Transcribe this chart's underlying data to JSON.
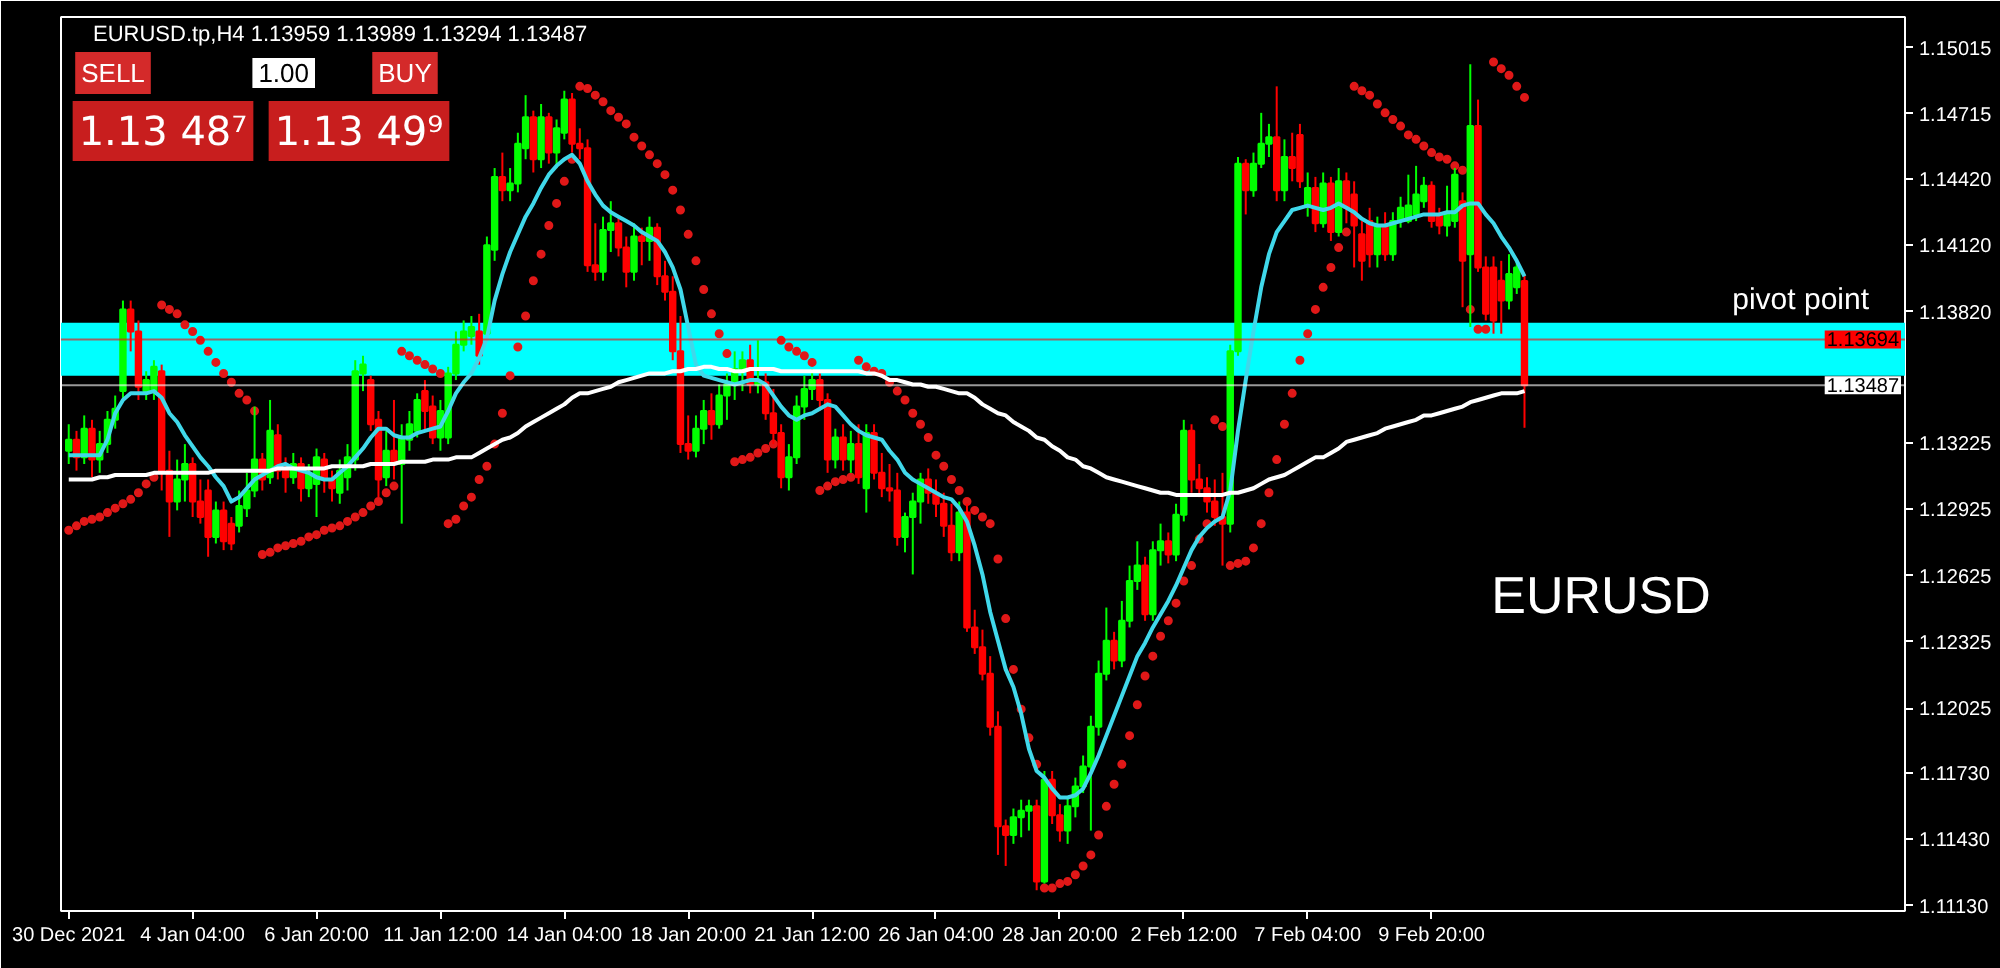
{
  "chart_data": {
    "type": "candlestick",
    "title": "EURUSD.tp,H4 1.13959 1.13989 1.13294 1.13487",
    "categories": [
      "30 Dec 2021",
      null,
      null,
      null,
      null,
      null,
      null,
      null,
      null,
      null,
      null,
      null,
      null,
      null,
      null,
      null,
      "4 Jan 04:00",
      null,
      null,
      null,
      null,
      null,
      null,
      null,
      null,
      null,
      null,
      null,
      null,
      null,
      null,
      null,
      "6 Jan 20:00",
      null,
      null,
      null,
      null,
      null,
      null,
      null,
      null,
      null,
      null,
      null,
      null,
      null,
      null,
      null,
      "11 Jan 12:00",
      null,
      null,
      null,
      null,
      null,
      null,
      null,
      null,
      null,
      null,
      null,
      null,
      null,
      null,
      null,
      "14 Jan 04:00",
      null,
      null,
      null,
      null,
      null,
      null,
      null,
      null,
      null,
      null,
      null,
      null,
      null,
      null,
      null,
      "18 Jan 20:00",
      null,
      null,
      null,
      null,
      null,
      null,
      null,
      null,
      null,
      null,
      null,
      null,
      null,
      null,
      null,
      "21 Jan 12:00",
      null,
      null,
      null,
      null,
      null,
      null,
      null,
      null,
      null,
      null,
      null,
      null,
      null,
      null,
      null,
      "26 Jan 04:00",
      null,
      null,
      null,
      null,
      null,
      null,
      null,
      null,
      null,
      null,
      null,
      null,
      null,
      null,
      null,
      "28 Jan 20:00",
      null,
      null,
      null,
      null,
      null,
      null,
      null,
      null,
      null,
      null,
      null,
      null,
      null,
      null,
      null,
      "2 Feb 12:00",
      null,
      null,
      null,
      null,
      null,
      null,
      null,
      null,
      null,
      null,
      null,
      null,
      null,
      null,
      null,
      "7 Feb 04:00",
      null,
      null,
      null,
      null,
      null,
      null,
      null,
      null,
      null,
      null,
      null,
      null,
      null,
      null,
      null,
      "9 Feb 20:00",
      null,
      null,
      null,
      null,
      null,
      null,
      null,
      null,
      null,
      null,
      null,
      null
    ],
    "ohlc": [
      [
        1.1319,
        1.1331,
        1.1313,
        1.1324
      ],
      [
        1.1324,
        1.1328,
        1.131,
        1.1316
      ],
      [
        1.1316,
        1.1335,
        1.1313,
        1.1329
      ],
      [
        1.1329,
        1.1333,
        1.1307,
        1.1315
      ],
      [
        1.1315,
        1.1328,
        1.1309,
        1.1322
      ],
      [
        1.1322,
        1.1337,
        1.1318,
        1.1333
      ],
      [
        1.1333,
        1.1344,
        1.1329,
        1.1338
      ],
      [
        1.1346,
        1.1387,
        1.1342,
        1.1383
      ],
      [
        1.1383,
        1.1387,
        1.1364,
        1.1373
      ],
      [
        1.1373,
        1.1378,
        1.1342,
        1.1348
      ],
      [
        1.1346,
        1.1355,
        1.1342,
        1.1351
      ],
      [
        1.1346,
        1.136,
        1.1342,
        1.1357
      ],
      [
        1.1355,
        1.1358,
        1.1301,
        1.131
      ],
      [
        1.131,
        1.1319,
        1.128,
        1.1296
      ],
      [
        1.1296,
        1.1315,
        1.1292,
        1.1306
      ],
      [
        1.1306,
        1.1322,
        1.1296,
        1.1313
      ],
      [
        1.1313,
        1.1316,
        1.1289,
        1.1296
      ],
      [
        1.1296,
        1.1306,
        1.1286,
        1.1289
      ],
      [
        1.1301,
        1.1306,
        1.1271,
        1.128
      ],
      [
        1.128,
        1.1296,
        1.1277,
        1.1292
      ],
      [
        1.1292,
        1.1296,
        1.1274,
        1.1278
      ],
      [
        1.1286,
        1.1289,
        1.1274,
        1.1277
      ],
      [
        1.1285,
        1.1301,
        1.1282,
        1.1294
      ],
      [
        1.1293,
        1.1309,
        1.1289,
        1.1301
      ],
      [
        1.1301,
        1.1339,
        1.1298,
        1.1315
      ],
      [
        1.1315,
        1.1318,
        1.1301,
        1.1306
      ],
      [
        1.1307,
        1.1342,
        1.1304,
        1.1328
      ],
      [
        1.1326,
        1.1331,
        1.1306,
        1.131
      ],
      [
        1.131,
        1.1316,
        1.13,
        1.1307
      ],
      [
        1.1307,
        1.1318,
        1.1304,
        1.1313
      ],
      [
        1.1313,
        1.1316,
        1.1296,
        1.1302
      ],
      [
        1.1302,
        1.1313,
        1.1298,
        1.1309
      ],
      [
        1.1304,
        1.132,
        1.1289,
        1.1316
      ],
      [
        1.1315,
        1.1318,
        1.13,
        1.1306
      ],
      [
        1.1306,
        1.131,
        1.1296,
        1.1302
      ],
      [
        1.13,
        1.1315,
        1.1295,
        1.131
      ],
      [
        1.1307,
        1.1322,
        1.1301,
        1.1316
      ],
      [
        1.1315,
        1.136,
        1.131,
        1.1355
      ],
      [
        1.1354,
        1.1362,
        1.1346,
        1.1358
      ],
      [
        1.1351,
        1.1353,
        1.1328,
        1.1331
      ],
      [
        1.1333,
        1.1337,
        1.1298,
        1.1306
      ],
      [
        1.1307,
        1.1328,
        1.1303,
        1.1319
      ],
      [
        1.1319,
        1.1342,
        1.1306,
        1.1313
      ],
      [
        1.1313,
        1.1331,
        1.1286,
        1.1325
      ],
      [
        1.1324,
        1.1337,
        1.1319,
        1.1331
      ],
      [
        1.1328,
        1.1345,
        1.1325,
        1.1342
      ],
      [
        1.1346,
        1.1351,
        1.1328,
        1.1337
      ],
      [
        1.1339,
        1.1344,
        1.1322,
        1.1325
      ],
      [
        1.1325,
        1.1342,
        1.1319,
        1.1337
      ],
      [
        1.1325,
        1.1357,
        1.1322,
        1.1354
      ],
      [
        1.1354,
        1.1373,
        1.1351,
        1.1367
      ],
      [
        1.1367,
        1.1378,
        1.1364,
        1.1373
      ],
      [
        1.1371,
        1.138,
        1.1367,
        1.1375
      ],
      [
        1.1373,
        1.1381,
        1.1358,
        1.1362
      ],
      [
        1.1372,
        1.1416,
        1.1369,
        1.1412
      ],
      [
        1.141,
        1.1447,
        1.1405,
        1.1443
      ],
      [
        1.1443,
        1.1454,
        1.1432,
        1.1437
      ],
      [
        1.1437,
        1.1447,
        1.1432,
        1.144
      ],
      [
        1.144,
        1.1463,
        1.1436,
        1.1458
      ],
      [
        1.1456,
        1.148,
        1.1451,
        1.147
      ],
      [
        1.147,
        1.1473,
        1.1445,
        1.1451
      ],
      [
        1.1451,
        1.1476,
        1.1447,
        1.147
      ],
      [
        1.147,
        1.1472,
        1.1449,
        1.1454
      ],
      [
        1.1454,
        1.1469,
        1.1447,
        1.1465
      ],
      [
        1.1463,
        1.1482,
        1.146,
        1.1478
      ],
      [
        1.1478,
        1.1481,
        1.1454,
        1.1458
      ],
      [
        1.1458,
        1.1465,
        1.1451,
        1.1456
      ],
      [
        1.1456,
        1.146,
        1.14,
        1.1403
      ],
      [
        1.1403,
        1.1422,
        1.1396,
        1.14
      ],
      [
        1.14,
        1.1425,
        1.1396,
        1.1419
      ],
      [
        1.1419,
        1.1432,
        1.1409,
        1.1422
      ],
      [
        1.1422,
        1.1425,
        1.1407,
        1.1411
      ],
      [
        1.1411,
        1.1416,
        1.1393,
        1.14
      ],
      [
        1.14,
        1.1422,
        1.1396,
        1.1416
      ],
      [
        1.1416,
        1.142,
        1.1403,
        1.1414
      ],
      [
        1.1414,
        1.1425,
        1.1405,
        1.142
      ],
      [
        1.142,
        1.1422,
        1.1394,
        1.1398
      ],
      [
        1.1398,
        1.1405,
        1.1387,
        1.1391
      ],
      [
        1.1391,
        1.1398,
        1.136,
        1.1364
      ],
      [
        1.1364,
        1.138,
        1.1318,
        1.1322
      ],
      [
        1.1322,
        1.1335,
        1.1315,
        1.1319
      ],
      [
        1.1319,
        1.1335,
        1.1316,
        1.1329
      ],
      [
        1.1329,
        1.1342,
        1.1322,
        1.1337
      ],
      [
        1.1337,
        1.1345,
        1.1324,
        1.1331
      ],
      [
        1.1331,
        1.1349,
        1.1329,
        1.1344
      ],
      [
        1.1344,
        1.1354,
        1.1333,
        1.1349
      ],
      [
        1.1349,
        1.1364,
        1.1342,
        1.1356
      ],
      [
        1.1356,
        1.1364,
        1.1346,
        1.136
      ],
      [
        1.136,
        1.1367,
        1.1345,
        1.1349
      ],
      [
        1.1349,
        1.1369,
        1.1345,
        1.135
      ],
      [
        1.135,
        1.1354,
        1.1333,
        1.1336
      ],
      [
        1.1336,
        1.1347,
        1.1322,
        1.1327
      ],
      [
        1.1327,
        1.1331,
        1.1302,
        1.1307
      ],
      [
        1.1307,
        1.1322,
        1.1301,
        1.1316
      ],
      [
        1.1316,
        1.1344,
        1.1313,
        1.1339
      ],
      [
        1.1339,
        1.1353,
        1.1333,
        1.1347
      ],
      [
        1.1347,
        1.1356,
        1.1342,
        1.1351
      ],
      [
        1.1351,
        1.1354,
        1.1337,
        1.1342
      ],
      [
        1.1342,
        1.1345,
        1.1309,
        1.1315
      ],
      [
        1.1315,
        1.1329,
        1.1311,
        1.1325
      ],
      [
        1.1325,
        1.1331,
        1.131,
        1.1315
      ],
      [
        1.1315,
        1.1328,
        1.1309,
        1.1322
      ],
      [
        1.1322,
        1.1331,
        1.1304,
        1.1307
      ],
      [
        1.1302,
        1.1331,
        1.1291,
        1.1327
      ],
      [
        1.1327,
        1.1331,
        1.1306,
        1.1309
      ],
      [
        1.1309,
        1.1318,
        1.1298,
        1.1302
      ],
      [
        1.1302,
        1.1313,
        1.1296,
        1.1301
      ],
      [
        1.1301,
        1.1309,
        1.1276,
        1.128
      ],
      [
        1.128,
        1.1291,
        1.1273,
        1.1289
      ],
      [
        1.1289,
        1.13,
        1.1263,
        1.1296
      ],
      [
        1.1296,
        1.1309,
        1.1286,
        1.1306
      ],
      [
        1.1306,
        1.1311,
        1.1295,
        1.13
      ],
      [
        1.13,
        1.1306,
        1.1289,
        1.1295
      ],
      [
        1.1295,
        1.13,
        1.128,
        1.1285
      ],
      [
        1.1285,
        1.1295,
        1.1269,
        1.1273
      ],
      [
        1.1273,
        1.1296,
        1.1269,
        1.1291
      ],
      [
        1.1291,
        1.1295,
        1.1237,
        1.1239
      ],
      [
        1.1239,
        1.1247,
        1.1227,
        1.123
      ],
      [
        1.123,
        1.1238,
        1.1215,
        1.1218
      ],
      [
        1.1218,
        1.1226,
        1.119,
        1.1194
      ],
      [
        1.1194,
        1.1201,
        1.1136,
        1.1149
      ],
      [
        1.1149,
        1.1152,
        1.1131,
        1.1145
      ],
      [
        1.1145,
        1.1157,
        1.1141,
        1.1153
      ],
      [
        1.1153,
        1.1161,
        1.1144,
        1.1156
      ],
      [
        1.1156,
        1.1161,
        1.1147,
        1.1158
      ],
      [
        1.1158,
        1.1161,
        1.112,
        1.1124
      ],
      [
        1.1124,
        1.1174,
        1.1123,
        1.117
      ],
      [
        1.117,
        1.1174,
        1.115,
        1.1154
      ],
      [
        1.1154,
        1.1159,
        1.1142,
        1.1147
      ],
      [
        1.1147,
        1.1162,
        1.1141,
        1.1158
      ],
      [
        1.1158,
        1.1171,
        1.1153,
        1.1167
      ],
      [
        1.1167,
        1.1181,
        1.1164,
        1.1176
      ],
      [
        1.1176,
        1.1199,
        1.1147,
        1.1194
      ],
      [
        1.1194,
        1.1224,
        1.119,
        1.1218
      ],
      [
        1.1218,
        1.1248,
        1.1215,
        1.1233
      ],
      [
        1.1233,
        1.1237,
        1.122,
        1.1224
      ],
      [
        1.1224,
        1.1251,
        1.1221,
        1.1242
      ],
      [
        1.1242,
        1.1267,
        1.1239,
        1.126
      ],
      [
        1.126,
        1.1278,
        1.1256,
        1.1267
      ],
      [
        1.1267,
        1.1271,
        1.1242,
        1.1245
      ],
      [
        1.1245,
        1.1278,
        1.1242,
        1.1274
      ],
      [
        1.1274,
        1.1286,
        1.1267,
        1.1278
      ],
      [
        1.1278,
        1.1282,
        1.1268,
        1.1272
      ],
      [
        1.1272,
        1.1295,
        1.1269,
        1.129
      ],
      [
        1.129,
        1.1333,
        1.1287,
        1.1328
      ],
      [
        1.1328,
        1.1331,
        1.13,
        1.1306
      ],
      [
        1.1306,
        1.1313,
        1.1298,
        1.1302
      ],
      [
        1.1302,
        1.1307,
        1.1291,
        1.1296
      ],
      [
        1.1296,
        1.1306,
        1.1285,
        1.1289
      ],
      [
        1.1289,
        1.1309,
        1.1267,
        1.1286
      ],
      [
        1.1286,
        1.1367,
        1.1282,
        1.1364
      ],
      [
        1.1364,
        1.1452,
        1.1362,
        1.1449
      ],
      [
        1.1449,
        1.1451,
        1.1426,
        1.1437
      ],
      [
        1.1437,
        1.1454,
        1.1434,
        1.1449
      ],
      [
        1.1449,
        1.1472,
        1.1447,
        1.1458
      ],
      [
        1.1458,
        1.1467,
        1.1452,
        1.1461
      ],
      [
        1.1461,
        1.1484,
        1.1432,
        1.1437
      ],
      [
        1.1437,
        1.146,
        1.1432,
        1.1452
      ],
      [
        1.1452,
        1.1463,
        1.1441,
        1.1447
      ],
      [
        1.1462,
        1.1467,
        1.1438,
        1.1441
      ],
      [
        1.143,
        1.1445,
        1.1425,
        1.1438
      ],
      [
        1.1438,
        1.1443,
        1.1418,
        1.1422
      ],
      [
        1.1422,
        1.1445,
        1.142,
        1.144
      ],
      [
        1.144,
        1.1443,
        1.1414,
        1.1418
      ],
      [
        1.1418,
        1.1447,
        1.1416,
        1.1441
      ],
      [
        1.1441,
        1.1445,
        1.1422,
        1.1429
      ],
      [
        1.1435,
        1.1441,
        1.1402,
        1.1421
      ],
      [
        1.1417,
        1.1423,
        1.1396,
        1.1405
      ],
      [
        1.1423,
        1.1429,
        1.1402,
        1.1408
      ],
      [
        1.1408,
        1.1425,
        1.1402,
        1.1421
      ],
      [
        1.1421,
        1.1427,
        1.1405,
        1.1408
      ],
      [
        1.1408,
        1.1427,
        1.1405,
        1.1423
      ],
      [
        1.1423,
        1.1434,
        1.142,
        1.1429
      ],
      [
        1.1423,
        1.1444,
        1.1422,
        1.143
      ],
      [
        1.1426,
        1.1448,
        1.1423,
        1.1435
      ],
      [
        1.1432,
        1.1443,
        1.1429,
        1.1439
      ],
      [
        1.1439,
        1.1441,
        1.142,
        1.1423
      ],
      [
        1.1426,
        1.1429,
        1.1417,
        1.1421
      ],
      [
        1.1421,
        1.1439,
        1.1416,
        1.1426
      ],
      [
        1.1423,
        1.1447,
        1.142,
        1.1444
      ],
      [
        1.1432,
        1.1436,
        1.1384,
        1.1405
      ],
      [
        1.1408,
        1.1494,
        1.1375,
        1.1466
      ],
      [
        1.1466,
        1.1478,
        1.14,
        1.1402
      ],
      [
        1.1402,
        1.1407,
        1.1378,
        1.1381
      ],
      [
        1.1402,
        1.1407,
        1.1372,
        1.1378
      ],
      [
        1.1396,
        1.1405,
        1.1372,
        1.1387
      ],
      [
        1.1387,
        1.1408,
        1.1383,
        1.1399
      ],
      [
        1.1393,
        1.1405,
        1.139,
        1.1402
      ],
      [
        1.13959,
        1.13989,
        1.13294,
        1.13487
      ]
    ],
    "colors": [
      "#00ff00",
      "#ff0000",
      "#00ff00",
      "#ff0000",
      "#00ff00",
      "#00ff00",
      "#00ff00",
      "#00ff00",
      "#ff0000",
      "#ff0000",
      "#00ff00",
      "#00ff00",
      "#ff0000",
      "#ff0000",
      "#00ff00",
      "#00ff00",
      "#ff0000",
      "#ff0000",
      "#ff0000",
      "#00ff00",
      "#ff0000",
      "#ff0000",
      "#00ff00",
      "#00ff00",
      "#00ff00",
      "#ff0000",
      "#00ff00",
      "#ff0000",
      "#ff0000",
      "#00ff00",
      "#ff0000",
      "#00ff00",
      "#00ff00",
      "#ff0000",
      "#ff0000",
      "#00ff00",
      "#00ff00",
      "#00ff00",
      "#00ff00",
      "#ff0000",
      "#ff0000",
      "#00ff00",
      "#ff0000",
      "#00ff00",
      "#00ff00",
      "#00ff00",
      "#ff0000",
      "#ff0000",
      "#00ff00",
      "#00ff00",
      "#00ff00",
      "#00ff00",
      "#00ff00",
      "#ff0000",
      "#00ff00",
      "#00ff00",
      "#ff0000",
      "#00ff00",
      "#00ff00",
      "#00ff00",
      "#ff0000",
      "#00ff00",
      "#ff0000",
      "#00ff00",
      "#00ff00",
      "#ff0000",
      "#ff0000",
      "#ff0000",
      "#ff0000",
      "#00ff00",
      "#00ff00",
      "#ff0000",
      "#ff0000",
      "#00ff00",
      "#ff0000",
      "#00ff00",
      "#ff0000",
      "#ff0000",
      "#ff0000",
      "#ff0000",
      "#ff0000",
      "#00ff00",
      "#00ff00",
      "#ff0000",
      "#00ff00",
      "#00ff00",
      "#00ff00",
      "#00ff00",
      "#ff0000",
      "#00ff00",
      "#ff0000",
      "#ff0000",
      "#ff0000",
      "#00ff00",
      "#00ff00",
      "#00ff00",
      "#00ff00",
      "#ff0000",
      "#ff0000",
      "#00ff00",
      "#ff0000",
      "#00ff00",
      "#ff0000",
      "#00ff00",
      "#ff0000",
      "#ff0000",
      "#ff0000",
      "#ff0000",
      "#00ff00",
      "#00ff00",
      "#00ff00",
      "#ff0000",
      "#ff0000",
      "#ff0000",
      "#ff0000",
      "#00ff00",
      "#ff0000",
      "#ff0000",
      "#ff0000",
      "#ff0000",
      "#ff0000",
      "#ff0000",
      "#00ff00",
      "#00ff00",
      "#00ff00",
      "#ff0000",
      "#00ff00",
      "#ff0000",
      "#ff0000",
      "#00ff00",
      "#00ff00",
      "#00ff00",
      "#00ff00",
      "#00ff00",
      "#00ff00",
      "#ff0000",
      "#00ff00",
      "#00ff00",
      "#00ff00",
      "#ff0000",
      "#00ff00",
      "#00ff00",
      "#ff0000",
      "#00ff00",
      "#00ff00",
      "#ff0000",
      "#ff0000",
      "#ff0000",
      "#ff0000",
      "#ff0000",
      "#00ff00",
      "#00ff00",
      "#ff0000",
      "#00ff00",
      "#00ff00",
      "#00ff00",
      "#ff0000",
      "#00ff00",
      "#ff0000",
      "#ff0000",
      "#00ff00",
      "#ff0000",
      "#00ff00",
      "#ff0000",
      "#00ff00",
      "#ff0000",
      "#ff0000",
      "#ff0000",
      "#ff0000",
      "#00ff00",
      "#ff0000",
      "#00ff00",
      "#00ff00",
      "#00ff00",
      "#00ff00",
      "#00ff00",
      "#ff0000",
      "#ff0000",
      "#00ff00",
      "#00ff00",
      "#ff0000",
      "#00ff00",
      "#ff0000",
      "#ff0000",
      "#ff0000",
      "#ff0000",
      "#00ff00",
      "#00ff00",
      "#ff0000"
    ],
    "series": [
      {
        "type": "line",
        "color": "#40d8ea",
        "values": [
          1.1317,
          1.1317,
          1.1317,
          1.1317,
          1.1317,
          1.1324,
          1.1336,
          1.1342,
          1.1345,
          1.1345,
          1.1345,
          1.1346,
          1.1343,
          1.1336,
          1.1332,
          1.1326,
          1.1321,
          1.1316,
          1.1312,
          1.1307,
          1.1303,
          1.1296,
          1.1298,
          1.1302,
          1.1306,
          1.1308,
          1.131,
          1.1312,
          1.1313,
          1.1311,
          1.131,
          1.1309,
          1.1307,
          1.1306,
          1.1306,
          1.1309,
          1.1312,
          1.1316,
          1.132,
          1.1325,
          1.1329,
          1.1329,
          1.1326,
          1.1325,
          1.1325,
          1.1327,
          1.1328,
          1.1329,
          1.133,
          1.1337,
          1.1345,
          1.135,
          1.1354,
          1.1361,
          1.137,
          1.1387,
          1.1399,
          1.1409,
          1.1417,
          1.1425,
          1.1431,
          1.1438,
          1.1444,
          1.1448,
          1.1451,
          1.1453,
          1.1449,
          1.1441,
          1.1435,
          1.143,
          1.1427,
          1.1425,
          1.1423,
          1.1421,
          1.1418,
          1.1416,
          1.1414,
          1.1409,
          1.1402,
          1.1392,
          1.1375,
          1.1358,
          1.1353,
          1.1352,
          1.1351,
          1.135,
          1.1349,
          1.135,
          1.1351,
          1.1351,
          1.1349,
          1.1344,
          1.1339,
          1.1335,
          1.1333,
          1.1335,
          1.1336,
          1.1338,
          1.134,
          1.1339,
          1.1335,
          1.1331,
          1.1328,
          1.1326,
          1.1325,
          1.1324,
          1.1319,
          1.1315,
          1.1309,
          1.1306,
          1.1304,
          1.1302,
          1.13,
          1.1298,
          1.1297,
          1.1293,
          1.1287,
          1.1276,
          1.1263,
          1.1246,
          1.1233,
          1.122,
          1.1212,
          1.12,
          1.1184,
          1.1174,
          1.1171,
          1.1166,
          1.1162,
          1.1162,
          1.1163,
          1.1166,
          1.1173,
          1.1181,
          1.119,
          1.1199,
          1.1208,
          1.1217,
          1.1226,
          1.1232,
          1.1239,
          1.1245,
          1.1251,
          1.1258,
          1.1266,
          1.1274,
          1.128,
          1.1284,
          1.1287,
          1.1289,
          1.1301,
          1.1328,
          1.1351,
          1.1373,
          1.1393,
          1.1408,
          1.1418,
          1.1423,
          1.1428,
          1.1429,
          1.143,
          1.1429,
          1.1428,
          1.1429,
          1.1431,
          1.1429,
          1.1427,
          1.1424,
          1.1422,
          1.1421,
          1.1421,
          1.1422,
          1.1423,
          1.1424,
          1.1425,
          1.1426,
          1.1426,
          1.1426,
          1.1427,
          1.1427,
          1.143,
          1.1431,
          1.1431,
          1.1426,
          1.1422,
          1.1416,
          1.1411,
          1.1405,
          1.1398
        ]
      },
      {
        "type": "line",
        "color": "#ffffff",
        "values": [
          1.1306,
          1.1306,
          1.1306,
          1.1306,
          1.1307,
          1.1307,
          1.1308,
          1.1308,
          1.1308,
          1.1308,
          1.1308,
          1.1309,
          1.1309,
          1.1309,
          1.1309,
          1.1309,
          1.1309,
          1.1309,
          1.1309,
          1.131,
          1.131,
          1.131,
          1.131,
          1.131,
          1.131,
          1.131,
          1.131,
          1.1311,
          1.1311,
          1.1311,
          1.1311,
          1.1311,
          1.1311,
          1.1311,
          1.1312,
          1.1312,
          1.1312,
          1.1312,
          1.1312,
          1.1313,
          1.1313,
          1.1313,
          1.1313,
          1.1314,
          1.1314,
          1.1314,
          1.1314,
          1.1315,
          1.1315,
          1.1315,
          1.1316,
          1.1316,
          1.1316,
          1.1318,
          1.132,
          1.1322,
          1.1324,
          1.1325,
          1.1327,
          1.133,
          1.1332,
          1.1334,
          1.1336,
          1.1338,
          1.134,
          1.1343,
          1.1345,
          1.1345,
          1.1346,
          1.1347,
          1.1348,
          1.135,
          1.1351,
          1.1352,
          1.1353,
          1.1354,
          1.1354,
          1.1354,
          1.1355,
          1.1355,
          1.1356,
          1.1356,
          1.1357,
          1.1357,
          1.1356,
          1.1356,
          1.1355,
          1.1355,
          1.1356,
          1.1356,
          1.1356,
          1.1356,
          1.1355,
          1.1355,
          1.1355,
          1.1355,
          1.1355,
          1.1355,
          1.1355,
          1.1355,
          1.1355,
          1.1355,
          1.1355,
          1.1354,
          1.1354,
          1.1353,
          1.1351,
          1.1351,
          1.135,
          1.1349,
          1.1349,
          1.1348,
          1.1348,
          1.1347,
          1.1346,
          1.1345,
          1.1345,
          1.1343,
          1.134,
          1.1338,
          1.1336,
          1.1335,
          1.1332,
          1.133,
          1.1328,
          1.1325,
          1.1324,
          1.1321,
          1.1319,
          1.1316,
          1.1315,
          1.1312,
          1.1311,
          1.1309,
          1.1307,
          1.1306,
          1.1305,
          1.1304,
          1.1303,
          1.1302,
          1.1301,
          1.13,
          1.13,
          1.1299,
          1.1299,
          1.1299,
          1.1299,
          1.1299,
          1.1299,
          1.1299,
          1.13,
          1.13,
          1.1301,
          1.1302,
          1.1304,
          1.1306,
          1.1307,
          1.1308,
          1.131,
          1.1312,
          1.1314,
          1.1316,
          1.1316,
          1.1318,
          1.132,
          1.1323,
          1.1324,
          1.1325,
          1.1326,
          1.1327,
          1.1329,
          1.133,
          1.1331,
          1.1332,
          1.1333,
          1.1335,
          1.1335,
          1.1336,
          1.1337,
          1.1338,
          1.1339,
          1.1341,
          1.1342,
          1.1343,
          1.1344,
          1.1345,
          1.1345,
          1.1345,
          1.1346
        ]
      },
      {
        "type": "scatter",
        "color": "#e01818",
        "marker": "circle",
        "values": [
          1.1283,
          1.1285,
          1.1287,
          1.1288,
          1.1289,
          1.1291,
          1.1293,
          1.1295,
          1.1297,
          1.13,
          1.1304,
          1.1307,
          1.1385,
          1.1383,
          1.1381,
          1.1376,
          1.1373,
          1.1369,
          1.1364,
          1.1359,
          1.1354,
          1.135,
          1.1345,
          1.1342,
          1.1337,
          1.1272,
          1.1273,
          1.1275,
          1.1276,
          1.1277,
          1.1278,
          1.128,
          1.1281,
          1.1283,
          1.1284,
          1.1285,
          1.1287,
          1.1289,
          1.1291,
          1.1294,
          1.1296,
          1.13,
          1.1303,
          1.1364,
          1.1362,
          1.136,
          1.1358,
          1.1356,
          1.1354,
          1.1286,
          1.1288,
          1.1294,
          1.1298,
          1.1306,
          1.1312,
          1.1322,
          1.1336,
          1.1353,
          1.1366,
          1.138,
          1.1396,
          1.1408,
          1.1421,
          1.1431,
          1.1441,
          1.1451,
          1.1484,
          1.1483,
          1.148,
          1.1477,
          1.1473,
          1.147,
          1.1467,
          1.1461,
          1.1457,
          1.1453,
          1.1449,
          1.1444,
          1.1437,
          1.1428,
          1.1417,
          1.1405,
          1.1392,
          1.1381,
          1.1372,
          1.1363,
          1.1314,
          1.1315,
          1.1316,
          1.1318,
          1.132,
          1.1322,
          1.1369,
          1.1366,
          1.1364,
          1.1362,
          1.1359,
          1.1301,
          1.1303,
          1.1305,
          1.1306,
          1.1307,
          1.136,
          1.1357,
          1.1355,
          1.1354,
          1.135,
          1.1346,
          1.1342,
          1.1336,
          1.1331,
          1.1325,
          1.1317,
          1.1312,
          1.1306,
          1.1301,
          1.1296,
          1.1292,
          1.1289,
          1.1286,
          1.127,
          1.1243,
          1.122,
          1.1202,
          1.1189,
          1.1177,
          1.1121,
          1.1121,
          1.1123,
          1.1124,
          1.1127,
          1.1131,
          1.1136,
          1.1145,
          1.1158,
          1.1168,
          1.1177,
          1.119,
          1.1204,
          1.1217,
          1.1226,
          1.1235,
          1.1242,
          1.125,
          1.126,
          1.1267,
          1.1279,
          1.1286,
          1.1333,
          1.133,
          1.1267,
          1.1268,
          1.1269,
          1.1275,
          1.1286,
          1.13,
          1.1315,
          1.1331,
          1.1345,
          1.136,
          1.1372,
          1.1383,
          1.1393,
          1.1402,
          1.1411,
          1.1418,
          1.1484,
          1.1482,
          1.148,
          1.1476,
          1.1472,
          1.1469,
          1.1466,
          1.1462,
          1.146,
          1.1457,
          1.1454,
          1.1452,
          1.1451,
          1.1448,
          1.1446,
          1.1383,
          1.1374,
          1.1374,
          1.1495,
          1.1492,
          1.1489,
          1.1484,
          1.1479
        ]
      }
    ],
    "ylim": [
      1.11106,
      1.15154
    ],
    "yticks": [
      1.15015,
      1.14715,
      {
        "value": 1.1442,
        "label": "1.14420"
      },
      {
        "value": 1.1412,
        "label": "1.14120"
      },
      {
        "value": 1.1382,
        "label": "1.13820"
      },
      1.13225,
      1.12925,
      1.12625,
      1.12325,
      1.12025,
      {
        "value": 1.1173,
        "label": "1.11730"
      },
      {
        "value": 1.1143,
        "label": "1.11430"
      },
      {
        "value": 1.1113,
        "label": "1.11130"
      }
    ],
    "bands": [
      {
        "axis": "y",
        "from": 1.1353,
        "to": 1.1377,
        "label": "pivot point",
        "color": "#00ffff"
      }
    ],
    "ref_lines": [
      {
        "axis": "y",
        "value": 1.13694,
        "label": "1.13694",
        "color": "#ff0000"
      },
      {
        "axis": "y",
        "value": 1.13487,
        "label": "1.13487",
        "color": "#ffffff"
      }
    ],
    "annotations": [
      "EURUSD",
      "SELL",
      "1.00",
      "BUY",
      "1.13 48⁷",
      "1.13 49⁹"
    ]
  }
}
